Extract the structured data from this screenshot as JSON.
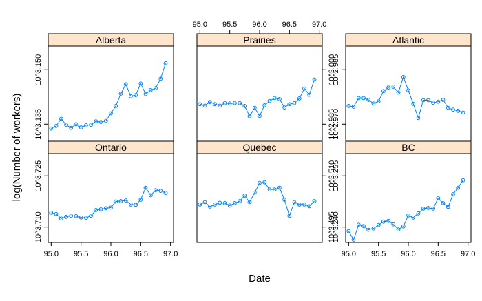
{
  "figure": {
    "xlabel": "Date",
    "ylabel": "log(Number of workers)"
  },
  "colors": {
    "strip": "#ffe5cc",
    "line": "#0080ff",
    "frame": "#000000",
    "text": "#000000"
  },
  "chart_data": {
    "type": "line",
    "layout": "trellis 3x2",
    "xlim": [
      94.95,
      97.05
    ],
    "x_ticks": [
      "95.0",
      "95.5",
      "96.0",
      "96.5",
      "97.0"
    ],
    "x_tick_values": [
      95.0,
      95.5,
      96.0,
      96.5,
      97.0
    ],
    "x": [
      95.0,
      95.083,
      95.167,
      95.25,
      95.333,
      95.417,
      95.5,
      95.583,
      95.667,
      95.75,
      95.833,
      95.917,
      96.0,
      96.083,
      96.167,
      96.25,
      96.333,
      96.417,
      96.5,
      96.583,
      96.667,
      96.75,
      96.833,
      96.917
    ],
    "y_scale": "log10",
    "marker": "open circle",
    "panels": [
      {
        "name": "Ontario",
        "y_ticks": [
          "10^3.710",
          "10^3.725"
        ],
        "y_tick_values": [
          3.71,
          3.725
        ],
        "ylim": [
          3.7055,
          3.7315
        ],
        "values": [
          3.7142,
          3.7138,
          3.7125,
          3.713,
          3.7133,
          3.7132,
          3.7128,
          3.7127,
          3.7133,
          3.715,
          3.7152,
          3.7155,
          3.7157,
          3.7175,
          3.7176,
          3.7178,
          3.7166,
          3.7165,
          3.718,
          3.7215,
          3.7193,
          3.7208,
          3.7206,
          3.72
        ]
      },
      {
        "name": "Quebec",
        "y_ticks": [
          "10^3.495",
          "10^3.510"
        ],
        "y_tick_values": [
          3.495,
          3.51
        ],
        "ylim": [
          3.4905,
          3.5165
        ],
        "values": [
          3.5016,
          3.5023,
          3.501,
          3.5016,
          3.5021,
          3.502,
          3.5013,
          3.502,
          3.5026,
          3.5042,
          3.5023,
          3.5051,
          3.5079,
          3.5081,
          3.506,
          3.506,
          3.5065,
          3.503,
          3.4983,
          3.5023,
          3.5016,
          3.5016,
          3.5011,
          3.5026
        ]
      },
      {
        "name": "BC",
        "y_ticks": [
          "10^3.240",
          "10^3.255"
        ],
        "y_tick_values": [
          3.24,
          3.255
        ],
        "ylim": [
          3.2355,
          3.2615
        ],
        "values": [
          3.2388,
          3.2363,
          3.2407,
          3.2403,
          3.2392,
          3.2396,
          3.2406,
          3.2416,
          3.2418,
          3.2408,
          3.2393,
          3.2402,
          3.2434,
          3.2428,
          3.244,
          3.2454,
          3.2456,
          3.2454,
          3.2485,
          3.247,
          3.2459,
          3.2496,
          3.2515,
          3.2537
        ]
      },
      {
        "name": "Alberta",
        "y_ticks": [
          "10^3.135",
          "10^3.150"
        ],
        "y_tick_values": [
          3.135,
          3.15
        ],
        "ylim": [
          3.1305,
          3.1565
        ],
        "values": [
          3.1338,
          3.1345,
          3.1365,
          3.1348,
          3.134,
          3.135,
          3.1341,
          3.1347,
          3.1348,
          3.1358,
          3.1356,
          3.1359,
          3.138,
          3.14,
          3.1434,
          3.146,
          3.1427,
          3.143,
          3.1462,
          3.1433,
          3.1444,
          3.1449,
          3.1475,
          3.1518
        ]
      },
      {
        "name": "Prairies",
        "y_ticks": [
          "10^2.985",
          "10^3.000"
        ],
        "y_tick_values": [
          2.985,
          3.0
        ],
        "ylim": [
          2.9805,
          3.0065
        ],
        "values": [
          2.9905,
          2.9901,
          2.9911,
          2.9905,
          2.9901,
          2.9908,
          2.9907,
          2.9908,
          2.9908,
          2.99,
          2.9872,
          2.9895,
          2.9873,
          2.9902,
          2.9914,
          2.9922,
          2.9919,
          2.9896,
          2.9905,
          2.9908,
          2.9921,
          2.9948,
          2.9931,
          2.9973
        ]
      },
      {
        "name": "Atlantic",
        "y_ticks": [
          "10^2.970",
          "10^2.985"
        ],
        "y_tick_values": [
          2.97,
          2.985
        ],
        "ylim": [
          2.9655,
          2.9915
        ],
        "values": [
          2.975,
          2.9748,
          2.9772,
          2.9772,
          2.9767,
          2.9757,
          2.9763,
          2.9791,
          2.9801,
          2.9803,
          2.9787,
          2.983,
          2.9793,
          2.9756,
          2.9717,
          2.9766,
          2.9766,
          2.9759,
          2.9762,
          2.9767,
          2.9745,
          2.974,
          2.9737,
          2.9732
        ]
      }
    ]
  }
}
